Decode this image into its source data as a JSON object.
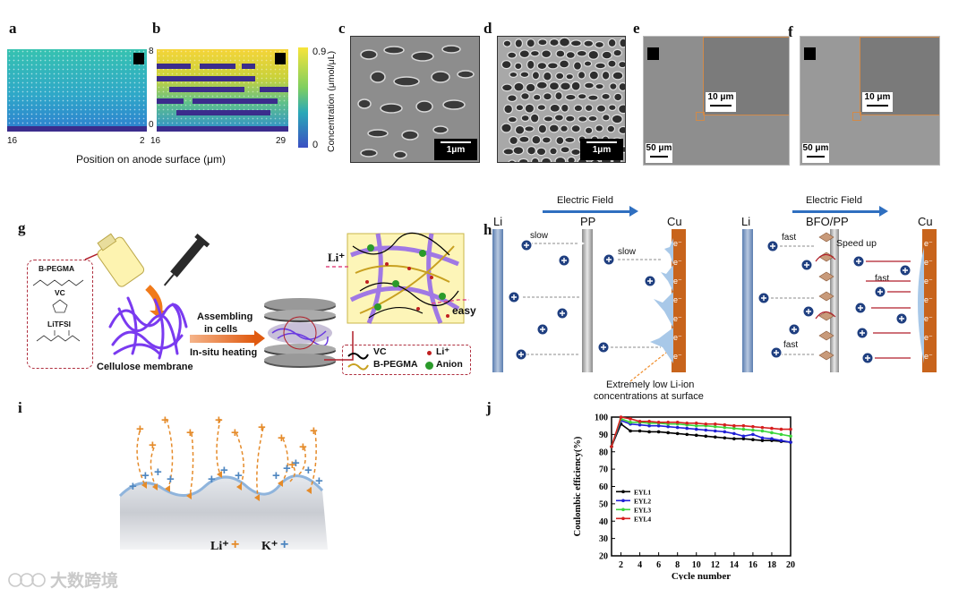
{
  "panels": {
    "a": "a",
    "b": "b",
    "c": "c",
    "d": "d",
    "e": "e",
    "f": "f",
    "g": "g",
    "h": "h",
    "i": "i",
    "j": "j"
  },
  "ab": {
    "a_tick_left": "16",
    "a_tick_right": "2",
    "b_tick_left": "16",
    "b_tick_right": "29",
    "b_y_top": "8",
    "b_y_bottom": "0",
    "xlabel": "Position on anode surface (μm)",
    "colorbar_label": "Concentration (μmol/μL)",
    "colorbar_max": "0.9",
    "colorbar_min": "0"
  },
  "sem": {
    "c_scale": "1μm",
    "d_scale": "1μm",
    "e_scale": "50 μm",
    "e_inset_scale": "10 μm",
    "f_scale": "50 μm",
    "f_inset_scale": "10 μm"
  },
  "g": {
    "bpegma": "B-PEGMA",
    "vc": "VC",
    "litfsi": "LiTFSI",
    "cellulose": "Cellulose membrane",
    "assembling": "Assembling",
    "in_cells": "in cells",
    "heating": "In-situ heating",
    "li_ion": "Li⁺",
    "easy": "easy",
    "legend_vc": "VC",
    "legend_li": "Li⁺",
    "legend_bpegma": "B-PEGMA",
    "legend_anion": "Anion"
  },
  "h": {
    "field_left": "Electric Field",
    "field_right": "Electric Field",
    "li_left": "Li",
    "pp": "PP",
    "cu_left": "Cu",
    "li_right": "Li",
    "bfo_pp": "BFO/PP",
    "cu_right": "Cu",
    "slow1": "slow",
    "slow2": "slow",
    "fast1": "fast",
    "fast2": "fast",
    "fast3": "fast",
    "speed_up": "Speed up",
    "note_line1": "Extremely low Li-ion",
    "note_line2": "concentrations at surface",
    "electron": "e⁻"
  },
  "i": {
    "li_label": "Li⁺",
    "k_label": "K⁺"
  },
  "chart_data": {
    "type": "line",
    "title": "",
    "xlabel": "Cycle number",
    "ylabel": "Coulombic efficiency(%)",
    "xlim": [
      1,
      20
    ],
    "ylim": [
      20,
      100
    ],
    "xticks": [
      "2",
      "4",
      "6",
      "8",
      "10",
      "12",
      "14",
      "16",
      "18",
      "20"
    ],
    "yticks": [
      "20",
      "30",
      "40",
      "50",
      "60",
      "70",
      "80",
      "90",
      "100"
    ],
    "x": [
      1,
      2,
      3,
      4,
      5,
      6,
      7,
      8,
      9,
      10,
      11,
      12,
      13,
      14,
      15,
      16,
      17,
      18,
      19,
      20
    ],
    "series": [
      {
        "name": "EYL1",
        "color": "#000000",
        "values": [
          83,
          96,
          92,
          92,
          91.5,
          91.5,
          91,
          90.5,
          90,
          89.5,
          89,
          88.5,
          88,
          87.5,
          87.5,
          87,
          86.5,
          86.5,
          86,
          85.5
        ]
      },
      {
        "name": "EYL2",
        "color": "#1f1fd6",
        "values": [
          83,
          98,
          96,
          95.5,
          95,
          95,
          94.5,
          94,
          93.5,
          93,
          92.5,
          92,
          91.5,
          90.5,
          89,
          90,
          88,
          87.5,
          86.5,
          85.5
        ]
      },
      {
        "name": "EYL3",
        "color": "#3bd63b",
        "values": [
          83,
          99,
          97,
          97,
          96.5,
          96.5,
          96,
          96,
          95.5,
          95,
          95,
          94.5,
          94,
          93.5,
          93,
          92.5,
          92,
          91,
          90,
          89
        ]
      },
      {
        "name": "EYL4",
        "color": "#d61f1f",
        "values": [
          83,
          100,
          99,
          97.5,
          97.5,
          97,
          97,
          97,
          96.5,
          96.5,
          96,
          96,
          95.5,
          95,
          95,
          94.5,
          94,
          93.5,
          93,
          93
        ]
      }
    ],
    "legend": [
      "EYL1",
      "EYL2",
      "EYL3",
      "EYL4"
    ]
  },
  "watermark": "大数跨境"
}
